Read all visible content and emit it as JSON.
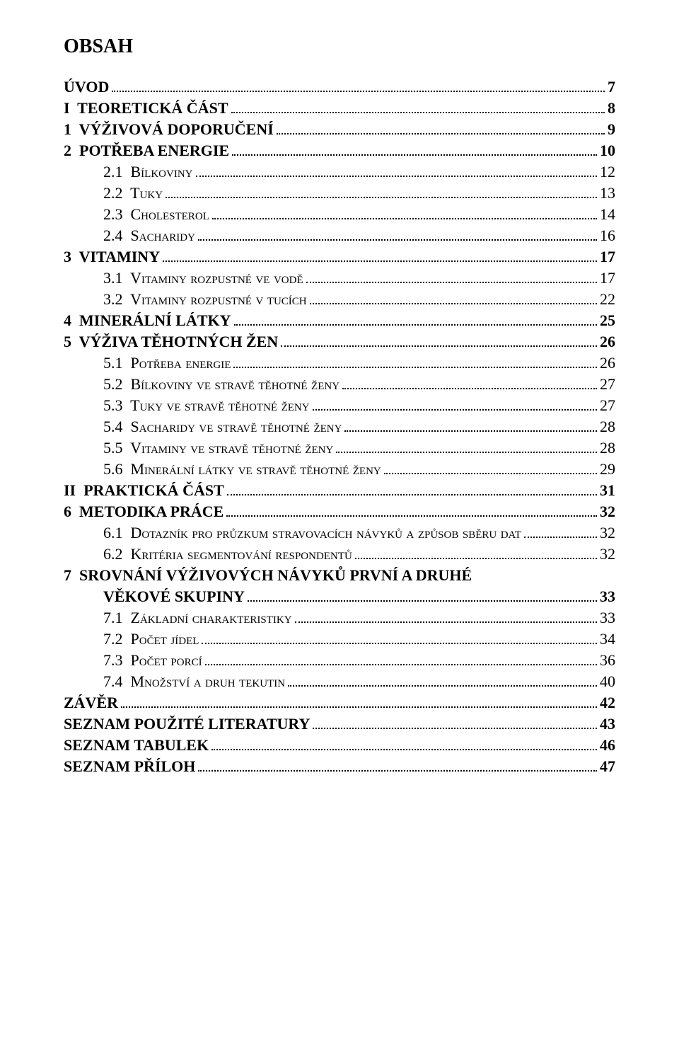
{
  "heading": "OBSAH",
  "font": {
    "body_family": "Times New Roman",
    "heading_size_pt": 21,
    "row_size_pt": 16
  },
  "colors": {
    "text": "#000000",
    "background": "#ffffff",
    "dots": "#000000"
  },
  "toc": [
    {
      "label": "ÚVOD",
      "page": "7",
      "level": 0,
      "bold": true,
      "smallcaps": false
    },
    {
      "label": "I  TEORETICKÁ ČÁST",
      "page": "8",
      "level": 0,
      "bold": true,
      "smallcaps": false
    },
    {
      "label": "1  VÝŽIVOVÁ DOPORUČENÍ",
      "page": "9",
      "level": 0,
      "bold": true,
      "smallcaps": false
    },
    {
      "label": "2  POTŘEBA ENERGIE",
      "page": "10",
      "level": 0,
      "bold": true,
      "smallcaps": false
    },
    {
      "label": "2.1  Bílkoviny",
      "page": "12",
      "level": 1,
      "bold": false,
      "smallcaps": true
    },
    {
      "label": "2.2  Tuky",
      "page": "13",
      "level": 1,
      "bold": false,
      "smallcaps": true
    },
    {
      "label": "2.3  Cholesterol",
      "page": "14",
      "level": 1,
      "bold": false,
      "smallcaps": true
    },
    {
      "label": "2.4  Sacharidy",
      "page": "16",
      "level": 1,
      "bold": false,
      "smallcaps": true
    },
    {
      "label": "3  VITAMINY",
      "page": "17",
      "level": 0,
      "bold": true,
      "smallcaps": false
    },
    {
      "label": "3.1  Vitaminy rozpustné ve vodě",
      "page": "17",
      "level": 1,
      "bold": false,
      "smallcaps": true
    },
    {
      "label": "3.2  Vitaminy rozpustné v tucích",
      "page": "22",
      "level": 1,
      "bold": false,
      "smallcaps": true
    },
    {
      "label": "4  MINERÁLNÍ LÁTKY",
      "page": "25",
      "level": 0,
      "bold": true,
      "smallcaps": false
    },
    {
      "label": "5  VÝŽIVA TĚHOTNÝCH ŽEN",
      "page": "26",
      "level": 0,
      "bold": true,
      "smallcaps": false
    },
    {
      "label": "5.1  Potřeba energie",
      "page": "26",
      "level": 1,
      "bold": false,
      "smallcaps": true
    },
    {
      "label": "5.2  Bílkoviny ve stravě těhotné ženy",
      "page": "27",
      "level": 1,
      "bold": false,
      "smallcaps": true
    },
    {
      "label": "5.3  Tuky ve stravě těhotné ženy",
      "page": "27",
      "level": 1,
      "bold": false,
      "smallcaps": true
    },
    {
      "label": "5.4  Sacharidy ve stravě těhotné ženy",
      "page": "28",
      "level": 1,
      "bold": false,
      "smallcaps": true
    },
    {
      "label": "5.5  Vitaminy ve stravě těhotné ženy",
      "page": "28",
      "level": 1,
      "bold": false,
      "smallcaps": true
    },
    {
      "label": "5.6  Minerální látky ve stravě těhotné ženy",
      "page": "29",
      "level": 1,
      "bold": false,
      "smallcaps": true
    },
    {
      "label": "II  PRAKTICKÁ ČÁST",
      "page": "31",
      "level": 0,
      "bold": true,
      "smallcaps": false
    },
    {
      "label": "6  METODIKA PRÁCE",
      "page": "32",
      "level": 0,
      "bold": true,
      "smallcaps": false
    },
    {
      "label": "6.1  Dotazník pro průzkum stravovacích návyků a způsob sběru dat",
      "page": "32",
      "level": 1,
      "bold": false,
      "smallcaps": true
    },
    {
      "label": "6.2  Kritéria segmentování respondentů",
      "page": "32",
      "level": 1,
      "bold": false,
      "smallcaps": true
    },
    {
      "label": "7  SROVNÁNÍ VÝŽIVOVÝCH NÁVYKŮ PRVNÍ A DRUHÉ VĚKOVÉ SKUPINY",
      "page": "33",
      "level": 0,
      "bold": true,
      "smallcaps": false,
      "wrap": true
    },
    {
      "label": "7.1  Základní charakteristiky",
      "page": "33",
      "level": 1,
      "bold": false,
      "smallcaps": true
    },
    {
      "label": "7.2  Počet jídel",
      "page": "34",
      "level": 1,
      "bold": false,
      "smallcaps": true
    },
    {
      "label": "7.3  Počet porcí",
      "page": "36",
      "level": 1,
      "bold": false,
      "smallcaps": true
    },
    {
      "label": "7.4  Množství a druh tekutin",
      "page": "40",
      "level": 1,
      "bold": false,
      "smallcaps": true
    },
    {
      "label": "ZÁVĚR",
      "page": "42",
      "level": 0,
      "bold": true,
      "smallcaps": false
    },
    {
      "label": "SEZNAM POUŽITÉ LITERATURY",
      "page": "43",
      "level": 0,
      "bold": true,
      "smallcaps": false
    },
    {
      "label": "SEZNAM TABULEK",
      "page": "46",
      "level": 0,
      "bold": true,
      "smallcaps": false
    },
    {
      "label": "SEZNAM PŘÍLOH",
      "page": "47",
      "level": 0,
      "bold": true,
      "smallcaps": false
    }
  ]
}
